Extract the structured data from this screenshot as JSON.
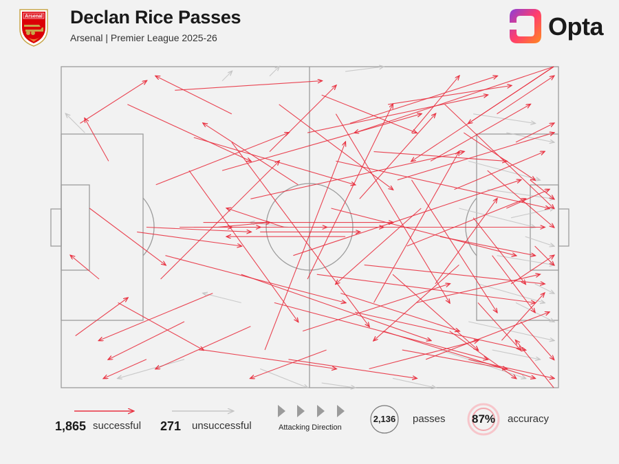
{
  "header": {
    "title": "Declan Rice Passes",
    "subtitle": "Arsenal | Premier League 2025-26",
    "crest_text": "Arsenal",
    "brand": "Opta"
  },
  "colors": {
    "successful": "#e8303f",
    "unsuccessful": "#c4c4c4",
    "pitch_lines": "#9b9b9b",
    "background": "#f2f2f2",
    "accuracy_ring": "#e8303f"
  },
  "legend": {
    "successful_count": "1,865",
    "successful_label": "successful",
    "unsuccessful_count": "271",
    "unsuccessful_label": "unsuccessful",
    "attacking_direction_label": "Attacking Direction",
    "passes_count": "2,136",
    "passes_label": "passes",
    "accuracy_value": "87%",
    "accuracy_label": "accuracy"
  },
  "chart_data": {
    "type": "pass-map",
    "pitch_length": 105,
    "pitch_width": 68,
    "attacking_direction": "left-to-right",
    "total_passes": 2136,
    "successful": 1865,
    "unsuccessful": 271,
    "accuracy_pct": 87,
    "series": [
      {
        "outcome": "successful",
        "passes": [
          [
            3,
            57,
            14,
            49
          ],
          [
            4,
            12,
            18,
            3
          ],
          [
            6,
            30,
            22,
            42
          ],
          [
            8,
            45,
            2,
            40
          ],
          [
            10,
            20,
            5,
            11
          ],
          [
            12,
            50,
            30,
            60
          ],
          [
            14,
            8,
            40,
            20
          ],
          [
            16,
            35,
            38,
            38
          ],
          [
            18,
            62,
            9,
            66
          ],
          [
            20,
            25,
            48,
            14
          ],
          [
            22,
            40,
            60,
            50
          ],
          [
            24,
            5,
            55,
            3
          ],
          [
            26,
            54,
            10,
            62
          ],
          [
            28,
            15,
            62,
            25
          ],
          [
            30,
            33,
            70,
            33
          ],
          [
            30,
            60,
            58,
            64
          ],
          [
            32,
            48,
            8,
            58
          ],
          [
            34,
            22,
            76,
            10
          ],
          [
            35,
            34,
            56,
            34
          ],
          [
            36,
            10,
            20,
            2
          ],
          [
            38,
            44,
            78,
            58
          ],
          [
            40,
            28,
            85,
            18
          ],
          [
            40,
            55,
            20,
            64
          ],
          [
            42,
            35,
            63,
            35
          ],
          [
            44,
            18,
            58,
            4
          ],
          [
            45,
            50,
            90,
            62
          ],
          [
            46,
            8,
            70,
            26
          ],
          [
            47,
            34,
            35,
            30
          ],
          [
            48,
            62,
            75,
            66
          ],
          [
            49,
            40,
            97,
            24
          ],
          [
            50,
            25,
            30,
            12
          ],
          [
            51,
            56,
            82,
            46
          ],
          [
            52,
            14,
            90,
            6
          ],
          [
            53,
            34,
            68,
            34
          ],
          [
            54,
            44,
            100,
            50
          ],
          [
            55,
            6,
            75,
            14
          ],
          [
            56,
            60,
            40,
            66
          ],
          [
            57,
            30,
            96,
            40
          ],
          [
            58,
            20,
            103,
            30
          ],
          [
            59,
            48,
            84,
            56
          ],
          [
            60,
            36,
            35,
            36
          ],
          [
            61,
            12,
            92,
            2
          ],
          [
            62,
            52,
            98,
            60
          ],
          [
            63,
            28,
            79,
            10
          ],
          [
            64,
            42,
            102,
            46
          ],
          [
            65,
            64,
            88,
            58
          ],
          [
            66,
            18,
            94,
            20
          ],
          [
            67,
            34,
            102,
            34
          ],
          [
            68,
            56,
            100,
            66
          ],
          [
            69,
            8,
            95,
            4
          ],
          [
            70,
            44,
            88,
            60
          ],
          [
            71,
            24,
            104,
            14
          ],
          [
            72,
            60,
            94,
            64
          ],
          [
            73,
            38,
            98,
            28
          ],
          [
            74,
            14,
            84,
            2
          ],
          [
            75,
            50,
            101,
            44
          ],
          [
            76,
            30,
            58,
            46
          ],
          [
            77,
            62,
            103,
            52
          ],
          [
            78,
            20,
            99,
            8
          ],
          [
            79,
            46,
            92,
            28
          ],
          [
            80,
            36,
            100,
            40
          ],
          [
            81,
            8,
            104,
            30
          ],
          [
            82,
            56,
            96,
            66
          ],
          [
            83,
            26,
            102,
            18
          ],
          [
            84,
            42,
            66,
            58
          ],
          [
            85,
            14,
            100,
            24
          ],
          [
            86,
            62,
            104,
            66
          ],
          [
            87,
            32,
            98,
            46
          ],
          [
            88,
            50,
            97,
            60
          ],
          [
            90,
            22,
            104,
            34
          ],
          [
            91,
            40,
            100,
            52
          ],
          [
            92,
            10,
            104,
            2
          ],
          [
            93,
            58,
            102,
            48
          ],
          [
            94,
            30,
            103,
            26
          ],
          [
            95,
            46,
            104,
            40
          ],
          [
            96,
            16,
            104,
            12
          ],
          [
            97,
            54,
            104,
            62
          ],
          [
            99,
            24,
            104,
            28
          ],
          [
            100,
            38,
            104,
            42
          ],
          [
            104,
            0,
            62,
            14
          ],
          [
            104,
            0,
            86,
            12
          ],
          [
            104,
            0,
            74,
            20
          ],
          [
            104,
            68,
            96,
            58
          ],
          [
            25,
            34,
            42,
            34
          ],
          [
            28,
            34,
            36,
            34
          ],
          [
            18,
            34,
            40,
            35
          ],
          [
            33,
            34,
            44,
            33
          ],
          [
            21,
            45,
            46,
            20
          ],
          [
            27,
            22,
            50,
            54
          ],
          [
            43,
            60,
            60,
            16
          ],
          [
            36,
            16,
            65,
            55
          ],
          [
            52,
            45,
            70,
            8
          ],
          [
            58,
            10,
            82,
            50
          ],
          [
            66,
            50,
            84,
            18
          ],
          [
            74,
            24,
            92,
            52
          ]
        ]
      },
      {
        "outcome": "unsuccessful",
        "passes": [
          [
            34,
            3,
            36,
            1
          ],
          [
            44,
            2,
            46,
            0
          ],
          [
            60,
            1,
            68,
            0
          ],
          [
            5,
            14,
            1,
            10
          ],
          [
            86,
            20,
            101,
            24
          ],
          [
            90,
            26,
            104,
            28
          ],
          [
            92,
            40,
            104,
            42
          ],
          [
            88,
            46,
            102,
            50
          ],
          [
            95,
            32,
            104,
            30
          ],
          [
            86,
            54,
            104,
            58
          ],
          [
            80,
            60,
            98,
            66
          ],
          [
            70,
            66,
            79,
            68
          ],
          [
            42,
            64,
            52,
            68
          ],
          [
            38,
            50,
            30,
            48
          ],
          [
            94,
            14,
            104,
            16
          ],
          [
            96,
            50,
            104,
            54
          ],
          [
            84,
            30,
            100,
            34
          ],
          [
            91,
            60,
            101,
            62
          ],
          [
            26,
            62,
            12,
            66
          ],
          [
            55,
            67,
            62,
            68
          ],
          [
            98,
            36,
            104,
            38
          ],
          [
            48,
            34,
            40,
            33
          ],
          [
            87,
            10,
            100,
            12
          ],
          [
            100,
            46,
            104,
            48
          ]
        ]
      }
    ]
  }
}
